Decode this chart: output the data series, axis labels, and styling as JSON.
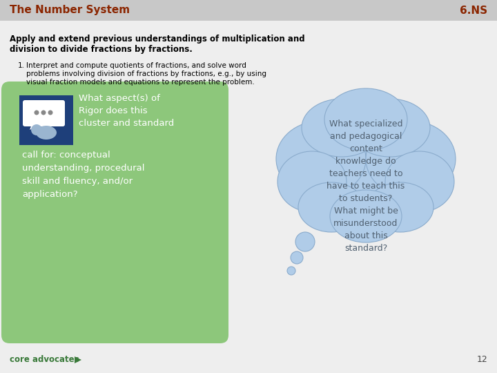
{
  "bg_color": "#eeeeee",
  "header_bg": "#c8c8c8",
  "header_text": "The Number System",
  "header_right": "6.NS",
  "header_text_color": "#8B2500",
  "title_bold": "Apply and extend previous understandings of multiplication and\ndivision to divide fractions by fractions.",
  "body_text_1": "Interpret and compute quotients of fractions, and solve word",
  "body_text_2": "problems involving division of fractions by fractions, e.g., by using",
  "body_text_3": "visual fraction models and equations to represent the problem.",
  "green_box_color": "#8dc77b",
  "green_text_line1": "What aspect(s) of",
  "green_text_line2": "Rigor does this",
  "green_text_line3": "cluster and standard",
  "green_text_line4": "call for: conceptual",
  "green_text_line5": "understanding, procedural",
  "green_text_line6": "skill and fluency, and/or",
  "green_text_line7": "application?",
  "green_text_color": "#ffffff",
  "blue_cloud_color": "#b0cce8",
  "blue_cloud_edge": "#8aabcc",
  "blue_cloud_text": "What specialized\nand pedagogical\ncontent\nknowledge do\nteachers need to\nhave to teach this\nto students?\nWhat might be\nmisunderstood\nabout this\nstandard?",
  "blue_text_color": "#506070",
  "icon_bg_color": "#1e3f7a",
  "footer_text": "core advocates",
  "page_num": "12",
  "footer_color": "#3a7a3a"
}
